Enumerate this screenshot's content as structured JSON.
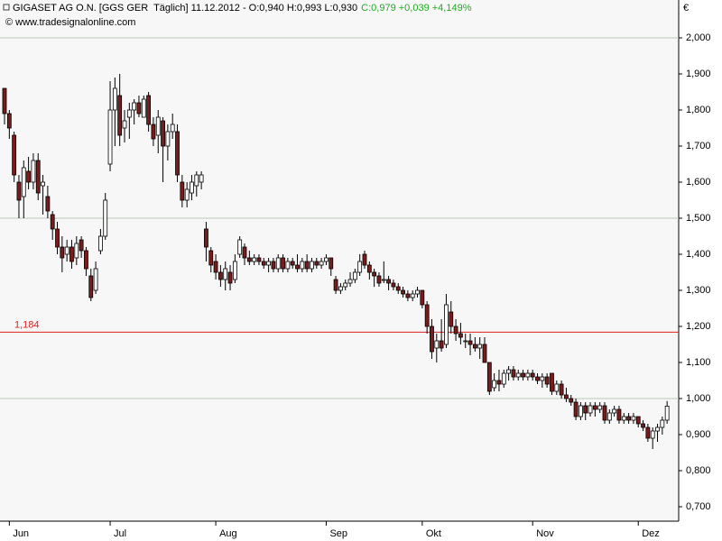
{
  "chart_data": {
    "type": "candlestick",
    "title": "GIGASET AG O.N. [GGS GER  Täglich] 11.12.2012 - O:0,940 H:0,993 L:0,930",
    "title_change": "C:0,979 +0,039 +4,149%",
    "title_change_color": "#22aa22",
    "source": "© www.tradesignalonline.com",
    "y_unit": "€",
    "up_color": "#ffffff",
    "down_color": "#7b1c1c",
    "categories": [
      null,
      "Jun",
      null,
      null,
      null,
      null,
      null,
      null,
      null,
      null,
      null,
      null,
      null,
      null,
      null,
      null,
      null,
      null,
      null,
      null,
      null,
      null,
      "Jul",
      null,
      null,
      null,
      null,
      null,
      null,
      null,
      null,
      null,
      null,
      null,
      null,
      null,
      null,
      null,
      null,
      null,
      null,
      null,
      null,
      null,
      "Aug",
      null,
      null,
      null,
      null,
      null,
      null,
      null,
      null,
      null,
      null,
      null,
      null,
      null,
      null,
      null,
      null,
      null,
      null,
      null,
      null,
      null,
      null,
      "Sep",
      null,
      null,
      null,
      null,
      null,
      null,
      null,
      null,
      null,
      null,
      null,
      null,
      null,
      null,
      null,
      null,
      null,
      null,
      null,
      "Okt",
      null,
      null,
      null,
      null,
      null,
      null,
      null,
      null,
      null,
      null,
      null,
      null,
      null,
      null,
      null,
      null,
      null,
      null,
      null,
      null,
      null,
      null,
      "Nov",
      null,
      null,
      null,
      null,
      null,
      null,
      null,
      null,
      null,
      null,
      null,
      null,
      null,
      null,
      null,
      null,
      null,
      null,
      null,
      null,
      null,
      "Dez",
      null,
      null,
      null,
      null,
      null,
      null
    ],
    "open": [
      1.86,
      1.79,
      1.73,
      1.6,
      1.56,
      1.63,
      1.6,
      1.66,
      1.59,
      1.56,
      1.51,
      1.47,
      1.42,
      1.4,
      1.42,
      1.39,
      1.44,
      1.41,
      1.34,
      1.3,
      1.41,
      1.45,
      1.65,
      1.8,
      1.84,
      1.75,
      1.78,
      1.8,
      1.82,
      1.78,
      1.84,
      1.76,
      1.73,
      1.77,
      1.7,
      1.74,
      1.74,
      1.6,
      1.55,
      1.57,
      1.59,
      1.6,
      1.47,
      1.41,
      1.38,
      1.35,
      1.33,
      1.35,
      1.33,
      1.4,
      1.42,
      1.39,
      1.38,
      1.39,
      1.38,
      1.37,
      1.38,
      1.36,
      1.39,
      1.36,
      1.38,
      1.37,
      1.36,
      1.38,
      1.36,
      1.38,
      1.37,
      1.38,
      1.39,
      1.33,
      1.3,
      1.31,
      1.32,
      1.33,
      1.35,
      1.4,
      1.37,
      1.35,
      1.34,
      1.33,
      1.33,
      1.32,
      1.31,
      1.3,
      1.29,
      1.28,
      1.29,
      1.3,
      1.26,
      1.2,
      1.14,
      1.16,
      1.15,
      1.24,
      1.2,
      1.18,
      1.16,
      1.16,
      1.15,
      1.14,
      1.15,
      1.1,
      1.03,
      1.05,
      1.04,
      1.07,
      1.08,
      1.06,
      1.07,
      1.06,
      1.07,
      1.06,
      1.05,
      1.06,
      1.07,
      1.02,
      1.04,
      1.01,
      1.0,
      0.99,
      0.95,
      0.98,
      0.96,
      0.98,
      0.97,
      0.98,
      0.94,
      0.96,
      0.97,
      0.94,
      0.95,
      0.94,
      0.95,
      0.93,
      0.92,
      0.89,
      0.91,
      0.92,
      0.94
    ],
    "high": [
      1.86,
      1.8,
      1.74,
      1.62,
      1.66,
      1.67,
      1.68,
      1.68,
      1.62,
      1.59,
      1.52,
      1.49,
      1.45,
      1.44,
      1.44,
      1.45,
      1.45,
      1.42,
      1.36,
      1.38,
      1.47,
      1.57,
      1.88,
      1.89,
      1.9,
      1.8,
      1.82,
      1.83,
      1.84,
      1.84,
      1.85,
      1.78,
      1.8,
      1.78,
      1.76,
      1.79,
      1.76,
      1.62,
      1.6,
      1.62,
      1.63,
      1.63,
      1.49,
      1.42,
      1.4,
      1.37,
      1.38,
      1.37,
      1.4,
      1.45,
      1.43,
      1.41,
      1.4,
      1.4,
      1.39,
      1.39,
      1.39,
      1.4,
      1.4,
      1.39,
      1.39,
      1.4,
      1.39,
      1.4,
      1.39,
      1.39,
      1.39,
      1.4,
      1.39,
      1.34,
      1.32,
      1.33,
      1.35,
      1.36,
      1.4,
      1.41,
      1.38,
      1.36,
      1.35,
      1.38,
      1.34,
      1.33,
      1.32,
      1.31,
      1.3,
      1.3,
      1.31,
      1.3,
      1.27,
      1.22,
      1.18,
      1.22,
      1.29,
      1.27,
      1.22,
      1.21,
      1.18,
      1.18,
      1.17,
      1.17,
      1.17,
      1.1,
      1.07,
      1.08,
      1.08,
      1.09,
      1.09,
      1.08,
      1.08,
      1.08,
      1.08,
      1.07,
      1.07,
      1.07,
      1.07,
      1.05,
      1.05,
      1.03,
      1.01,
      1.0,
      0.99,
      0.99,
      0.99,
      0.99,
      0.99,
      0.99,
      0.97,
      0.98,
      0.98,
      0.96,
      0.96,
      0.96,
      0.95,
      0.94,
      0.93,
      0.92,
      0.93,
      0.95,
      0.993
    ],
    "low": [
      1.76,
      1.72,
      1.6,
      1.5,
      1.5,
      1.58,
      1.58,
      1.55,
      1.51,
      1.5,
      1.44,
      1.4,
      1.35,
      1.38,
      1.36,
      1.37,
      1.39,
      1.34,
      1.27,
      1.29,
      1.4,
      1.44,
      1.63,
      1.7,
      1.7,
      1.71,
      1.72,
      1.76,
      1.78,
      1.78,
      1.74,
      1.7,
      1.68,
      1.6,
      1.66,
      1.72,
      1.6,
      1.53,
      1.53,
      1.55,
      1.56,
      1.58,
      1.38,
      1.35,
      1.33,
      1.31,
      1.3,
      1.3,
      1.32,
      1.39,
      1.37,
      1.37,
      1.37,
      1.37,
      1.36,
      1.35,
      1.35,
      1.35,
      1.35,
      1.35,
      1.36,
      1.35,
      1.35,
      1.35,
      1.35,
      1.36,
      1.36,
      1.37,
      1.34,
      1.29,
      1.29,
      1.3,
      1.31,
      1.32,
      1.34,
      1.36,
      1.33,
      1.31,
      1.31,
      1.32,
      1.3,
      1.3,
      1.29,
      1.28,
      1.27,
      1.27,
      1.28,
      1.25,
      1.18,
      1.11,
      1.1,
      1.13,
      1.14,
      1.18,
      1.16,
      1.15,
      1.14,
      1.12,
      1.13,
      1.11,
      1.1,
      1.01,
      1.02,
      1.02,
      1.03,
      1.05,
      1.05,
      1.05,
      1.05,
      1.05,
      1.05,
      1.04,
      1.03,
      1.03,
      1.01,
      1.01,
      1.0,
      0.99,
      0.98,
      0.94,
      0.94,
      0.94,
      0.95,
      0.95,
      0.96,
      0.93,
      0.93,
      0.95,
      0.93,
      0.93,
      0.93,
      0.93,
      0.92,
      0.91,
      0.88,
      0.86,
      0.88,
      0.9,
      0.93
    ],
    "close": [
      1.79,
      1.75,
      1.62,
      1.55,
      1.64,
      1.6,
      1.66,
      1.57,
      1.6,
      1.52,
      1.47,
      1.42,
      1.39,
      1.42,
      1.38,
      1.43,
      1.41,
      1.36,
      1.28,
      1.36,
      1.45,
      1.55,
      1.8,
      1.86,
      1.73,
      1.77,
      1.8,
      1.82,
      1.79,
      1.83,
      1.76,
      1.72,
      1.78,
      1.7,
      1.74,
      1.76,
      1.62,
      1.55,
      1.58,
      1.6,
      1.62,
      1.62,
      1.42,
      1.37,
      1.35,
      1.33,
      1.36,
      1.32,
      1.38,
      1.44,
      1.39,
      1.38,
      1.39,
      1.38,
      1.37,
      1.38,
      1.36,
      1.39,
      1.36,
      1.38,
      1.37,
      1.36,
      1.38,
      1.36,
      1.38,
      1.37,
      1.38,
      1.39,
      1.36,
      1.3,
      1.31,
      1.32,
      1.33,
      1.35,
      1.38,
      1.37,
      1.35,
      1.34,
      1.32,
      1.33,
      1.32,
      1.31,
      1.3,
      1.29,
      1.28,
      1.29,
      1.3,
      1.26,
      1.2,
      1.13,
      1.16,
      1.14,
      1.26,
      1.2,
      1.18,
      1.17,
      1.16,
      1.15,
      1.14,
      1.15,
      1.1,
      1.02,
      1.05,
      1.04,
      1.07,
      1.08,
      1.06,
      1.07,
      1.06,
      1.07,
      1.06,
      1.05,
      1.06,
      1.04,
      1.02,
      1.04,
      1.01,
      1.0,
      0.99,
      0.95,
      0.98,
      0.96,
      0.98,
      0.97,
      0.98,
      0.94,
      0.96,
      0.97,
      0.94,
      0.95,
      0.94,
      0.95,
      0.93,
      0.92,
      0.89,
      0.91,
      0.92,
      0.94,
      0.979
    ],
    "ylim": [
      0.66,
      2.0675
    ],
    "yticks": [
      {
        "value": 0.7,
        "label": "0,700"
      },
      {
        "value": 0.8,
        "label": "0,800"
      },
      {
        "value": 0.9,
        "label": "0,900"
      },
      {
        "value": 1.0,
        "label": "1,000"
      },
      {
        "value": 1.1,
        "label": "1,100"
      },
      {
        "value": 1.2,
        "label": "1,200"
      },
      {
        "value": 1.3,
        "label": "1,300"
      },
      {
        "value": 1.4,
        "label": "1,400"
      },
      {
        "value": 1.5,
        "label": "1,500"
      },
      {
        "value": 1.6,
        "label": "1,600"
      },
      {
        "value": 1.7,
        "label": "1,700"
      },
      {
        "value": 1.8,
        "label": "1,800"
      },
      {
        "value": 1.9,
        "label": "1,900"
      },
      {
        "value": 2.0,
        "label": "2,000"
      }
    ],
    "grid_lines": [
      1.0,
      1.5,
      2.0
    ],
    "reference_line": {
      "value": 1.184,
      "label": "1,184",
      "color": "#dd2020"
    }
  }
}
